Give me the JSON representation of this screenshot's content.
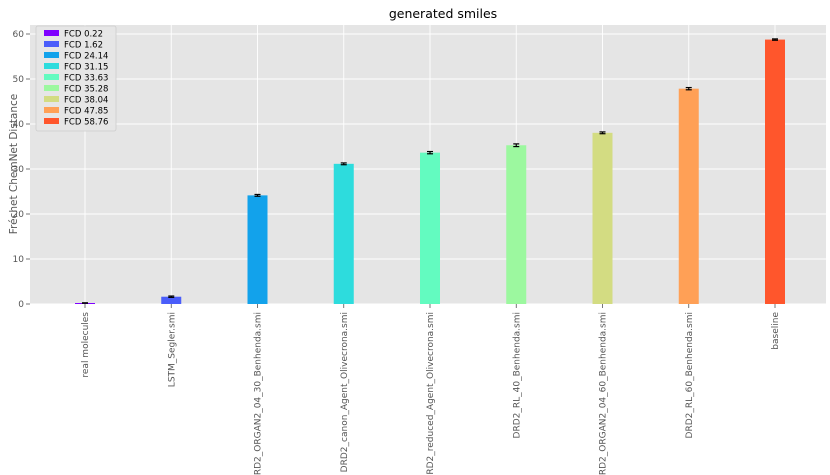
{
  "chart_data": {
    "type": "bar",
    "title": "generated smiles",
    "xlabel": "",
    "ylabel": "Fréchet ChemNet Distance",
    "ylim": [
      0,
      62
    ],
    "yticks": [
      0,
      10,
      20,
      30,
      40,
      50,
      60
    ],
    "grid": true,
    "legend_position": "top-left",
    "categories": [
      "real molecules",
      "LSTM_Segler.smi",
      "DRD2_ORGAN2_04_30_Benhenda.smi",
      "DRD2_canon_Agent_Olivecrona.smi",
      "DRD2_reduced_Agent_Olivecrona.smi",
      "DRD2_RL_40_Benhenda.smi",
      "DRD2_ORGAN2_04_60_Benhenda.smi",
      "DRD2_RL_60_Benhenda.smi",
      "baseline"
    ],
    "values": [
      0.22,
      1.62,
      24.14,
      31.15,
      33.63,
      35.28,
      38.04,
      47.85,
      58.76
    ],
    "errors": [
      0.05,
      0.15,
      0.2,
      0.2,
      0.25,
      0.3,
      0.2,
      0.25,
      0.15
    ],
    "legend": [
      "FCD 0.22",
      "FCD 1.62",
      "FCD 24.14",
      "FCD 31.15",
      "FCD 33.63",
      "FCD 35.28",
      "FCD 38.04",
      "FCD 47.85",
      "FCD 58.76"
    ],
    "colors": [
      "#7f00ff",
      "#4a5dfa",
      "#12a2eb",
      "#2ddcdd",
      "#63fbc0",
      "#9cf89f",
      "#d3dc82",
      "#ffa056",
      "#ff562c"
    ]
  }
}
